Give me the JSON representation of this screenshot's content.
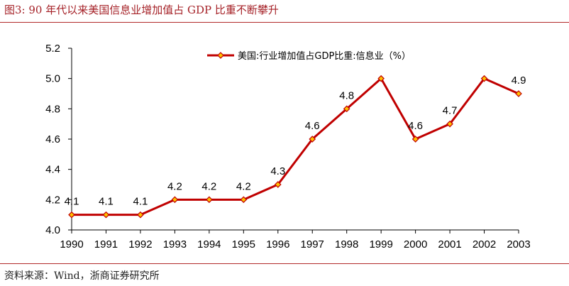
{
  "header": {
    "title": "图3:   90 年代以来美国信息业增加值占 GDP 比重不断攀升"
  },
  "footer": {
    "source": "资料来源：Wind，浙商证券研究所"
  },
  "chart_data": {
    "type": "line",
    "title": "",
    "xlabel": "",
    "ylabel": "",
    "categories": [
      "1990",
      "1991",
      "1992",
      "1993",
      "1994",
      "1995",
      "1996",
      "1997",
      "1998",
      "1999",
      "2000",
      "2001",
      "2002",
      "2003"
    ],
    "series": [
      {
        "name": "美国:行业增加值占GDP比重:信息业（%）",
        "values": [
          4.1,
          4.1,
          4.1,
          4.2,
          4.2,
          4.2,
          4.3,
          4.6,
          4.8,
          5.0,
          4.6,
          4.7,
          5.0,
          4.9
        ],
        "color": "#c00000",
        "marker_fill": "#ffc000",
        "marker_stroke": "#c00000"
      }
    ],
    "data_labels": [
      {
        "category": "1990",
        "text": "4.1"
      },
      {
        "category": "1991",
        "text": "4.1"
      },
      {
        "category": "1992",
        "text": "4.1"
      },
      {
        "category": "1993",
        "text": "4.2"
      },
      {
        "category": "1994",
        "text": "4.2"
      },
      {
        "category": "1995",
        "text": "4.2"
      },
      {
        "category": "1996",
        "text": "4.3"
      },
      {
        "category": "1997",
        "text": "4.6"
      },
      {
        "category": "1998",
        "text": "4.8"
      },
      {
        "category": "2000",
        "text": "4.6"
      },
      {
        "category": "2001",
        "text": "4.7"
      },
      {
        "category": "2003",
        "text": "4.9"
      }
    ],
    "ylim": [
      4.0,
      5.2
    ],
    "y_ticks": [
      "4.0",
      "4.2",
      "4.4",
      "4.6",
      "4.8",
      "5.0",
      "5.2"
    ],
    "grid": false,
    "legend_position": "top-right"
  }
}
